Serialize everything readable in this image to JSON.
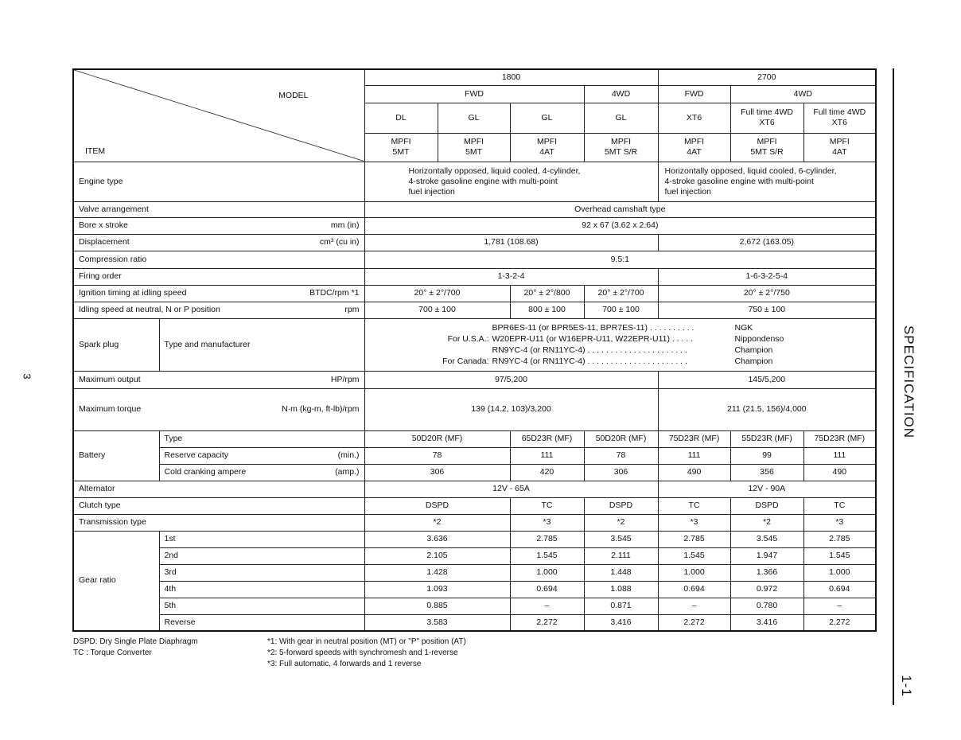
{
  "header": {
    "model_label": "MODEL",
    "item_label": "ITEM",
    "groups": [
      "1800",
      "2700"
    ],
    "drive": [
      "FWD",
      "4WD",
      "FWD",
      "4WD"
    ],
    "models": [
      "DL",
      "GL",
      "GL",
      "GL",
      "XT6",
      "Full time 4WD\nXT6",
      "Full time 4WD\nXT6"
    ],
    "trans": [
      "MPFI\n5MT",
      "MPFI\n5MT",
      "MPFI\n4AT",
      "MPFI\n5MT S/R",
      "MPFI\n4AT",
      "MPFI\n5MT S/R",
      "MPFI\n4AT"
    ]
  },
  "rows": [
    {
      "label": "Engine type",
      "unit": "",
      "values": [
        "Horizontally opposed, liquid cooled, 4-cylinder,\n4-stroke gasoline engine with multi-point\nfuel injection",
        "Horizontally opposed, liquid cooled, 6-cylinder,\n4-stroke gasoline engine with multi-point\nfuel injection"
      ]
    },
    {
      "label": "Valve arrangement",
      "unit": "",
      "values": [
        "Overhead camshaft type"
      ]
    },
    {
      "label": "Bore x stroke",
      "unit": "mm (in)",
      "values": [
        "92 x 67 (3.62 x 2.64)"
      ]
    },
    {
      "label": "Displacement",
      "unit": "cm³ (cu in)",
      "values": [
        "1,781 (108.68)",
        "2,672 (163.05)"
      ]
    },
    {
      "label": "Compression ratio",
      "unit": "",
      "values": [
        "9.5:1"
      ]
    },
    {
      "label": "Firing order",
      "unit": "",
      "values": [
        "1-3-2-4",
        "1-6-3-2-5-4"
      ]
    },
    {
      "label": "Ignition timing at idling speed",
      "unit": "BTDC/rpm *1",
      "values": [
        "20° ± 2°/700",
        "20° ± 2°/800",
        "20° ± 2°/700",
        "20° ± 2°/750"
      ]
    },
    {
      "label": "Idling speed at neutral, N or P position",
      "unit": "rpm",
      "values": [
        "700 ± 100",
        "800 ± 100",
        "700 ± 100",
        "750 ± 100"
      ]
    }
  ],
  "spark_plug": {
    "label": "Spark plug",
    "sub_label": "Type and manufacturer",
    "lines": [
      {
        "region": "",
        "part": "BPR6ES-11 (or BPR5ES-11, BPR7ES-11) . . . . . . . . . .",
        "maker": "NGK"
      },
      {
        "region": "For U.S.A.:",
        "part": "W20EPR-U11 (or W16EPR-U11, W22EPR-U11) . . . . .",
        "maker": "Nippondenso"
      },
      {
        "region": "",
        "part": "RN9YC-4 (or RN11YC-4) . . . . . . . . . . . . . . . . . . . . . .",
        "maker": "Champion"
      },
      {
        "region": "For Canada:",
        "part": "RN9YC-4 (or RN11YC-4) . . . . . . . . . . . . . . . . . . . . . .",
        "maker": "Champion"
      }
    ]
  },
  "rows2": [
    {
      "label": "Maximum output",
      "unit": "HP/rpm",
      "values": [
        "97/5,200",
        "145/5,200"
      ]
    },
    {
      "label": "Maximum torque",
      "unit": "N·m (kg-m, ft-lb)/rpm",
      "values": [
        "139 (14.2, 103)/3,200",
        "211 (21.5, 156)/4,000"
      ]
    }
  ],
  "battery": {
    "label": "Battery",
    "rows": [
      {
        "label": "Type",
        "unit": "",
        "values": [
          "50D20R (MF)",
          "65D23R (MF)",
          "50D20R (MF)",
          "75D23R (MF)",
          "55D23R (MF)",
          "75D23R (MF)"
        ]
      },
      {
        "label": "Reserve capacity",
        "unit": "(min.)",
        "values": [
          "78",
          "111",
          "78",
          "111",
          "99",
          "111"
        ]
      },
      {
        "label": "Cold cranking ampere",
        "unit": "(amp.)",
        "values": [
          "306",
          "420",
          "306",
          "490",
          "356",
          "490"
        ]
      }
    ]
  },
  "rows3": [
    {
      "label": "Alternator",
      "unit": "",
      "values": [
        "12V - 65A",
        "12V - 90A"
      ]
    },
    {
      "label": "Clutch type",
      "unit": "",
      "values": [
        "DSPD",
        "TC",
        "DSPD",
        "TC",
        "DSPD",
        "TC"
      ]
    },
    {
      "label": "Transmission type",
      "unit": "",
      "values": [
        "*2",
        "*3",
        "*2",
        "*3",
        "*2",
        "*3"
      ]
    }
  ],
  "gear": {
    "label": "Gear ratio",
    "rows": [
      {
        "label": "1st",
        "values": [
          "3.636",
          "2.785",
          "3.545",
          "2.785",
          "3.545",
          "2.785"
        ]
      },
      {
        "label": "2nd",
        "values": [
          "2.105",
          "1.545",
          "2.111",
          "1.545",
          "1.947",
          "1.545"
        ]
      },
      {
        "label": "3rd",
        "values": [
          "1.428",
          "1.000",
          "1.448",
          "1.000",
          "1.366",
          "1.000"
        ]
      },
      {
        "label": "4th",
        "values": [
          "1.093",
          "0.694",
          "1.088",
          "0.694",
          "0.972",
          "0.694"
        ]
      },
      {
        "label": "5th",
        "values": [
          "0.885",
          "–",
          "0.871",
          "–",
          "0.780",
          "–"
        ]
      },
      {
        "label": "Reverse",
        "values": [
          "3.583",
          "2.272",
          "3.416",
          "2.272",
          "3.416",
          "2.272"
        ]
      }
    ]
  },
  "footnotes": {
    "abbr": [
      "DSPD:  Dry Single Plate Diaphragm",
      "TC     :  Torque Converter"
    ],
    "notes": [
      "*1:  With gear in neutral position (MT) or \"P\" position (AT)",
      "*2:  5-forward speeds with synchromesh and 1-reverse",
      "*3:  Full automatic, 4 forwards and 1 reverse"
    ]
  },
  "page": {
    "section_title": "SPECIFICATION",
    "page_number": "1-1",
    "side_number": "3"
  }
}
